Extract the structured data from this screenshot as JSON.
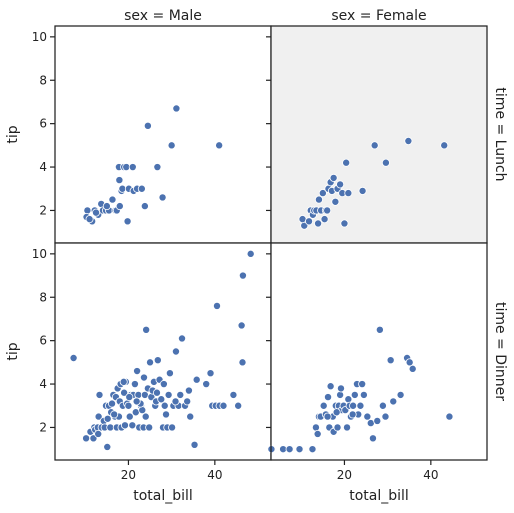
{
  "chart_data": {
    "type": "scatter",
    "xlabel": "total_bill",
    "ylabel": "tip",
    "xlim": [
      3,
      53
    ],
    "ylim": [
      0.5,
      10.5
    ],
    "xticks": [
      20,
      40
    ],
    "yticks": [
      2,
      4,
      6,
      8,
      10
    ],
    "marker_color": "#4c72b0",
    "highlight_bg": "#f0f0f0",
    "col_titles": [
      "sex = Male",
      "sex = Female"
    ],
    "row_titles": [
      "time = Lunch",
      "time = Dinner"
    ],
    "panels": [
      {
        "row": 0,
        "col": 0,
        "highlight": false,
        "points": [
          [
            10.5,
            2
          ],
          [
            10.3,
            1.7
          ],
          [
            11.6,
            1.5
          ],
          [
            12.2,
            2
          ],
          [
            13,
            1.8
          ],
          [
            13.7,
            2.3
          ],
          [
            14.1,
            2
          ],
          [
            14.8,
            2
          ],
          [
            15.5,
            2
          ],
          [
            16.3,
            2.5
          ],
          [
            17,
            2
          ],
          [
            17.3,
            2
          ],
          [
            17.8,
            4
          ],
          [
            17.9,
            3.4
          ],
          [
            18,
            2.2
          ],
          [
            18.4,
            2.9
          ],
          [
            18.6,
            3
          ],
          [
            19,
            4
          ],
          [
            19.5,
            4
          ],
          [
            20.1,
            3
          ],
          [
            21,
            4
          ],
          [
            21.2,
            2.9
          ],
          [
            22,
            3
          ],
          [
            23.1,
            3
          ],
          [
            23.8,
            2.2
          ],
          [
            24.5,
            5.9
          ],
          [
            26.7,
            4
          ],
          [
            27.9,
            2.6
          ],
          [
            30,
            5
          ],
          [
            31.1,
            6.7
          ],
          [
            41,
            5
          ],
          [
            19.8,
            1.5
          ],
          [
            15,
            2.2
          ],
          [
            12.5,
            1.9
          ],
          [
            11,
            1.6
          ]
        ]
      },
      {
        "row": 0,
        "col": 1,
        "highlight": true,
        "points": [
          [
            10.7,
            1.3
          ],
          [
            10.3,
            1.6
          ],
          [
            11.8,
            1.5
          ],
          [
            12.2,
            2
          ],
          [
            12.7,
            1.8
          ],
          [
            13,
            2
          ],
          [
            13.5,
            2
          ],
          [
            14.1,
            2.5
          ],
          [
            14.6,
            2
          ],
          [
            15,
            2.8
          ],
          [
            15.4,
            1.6
          ],
          [
            15.7,
            2
          ],
          [
            16.3,
            3
          ],
          [
            16.8,
            3.3
          ],
          [
            17.1,
            2.9
          ],
          [
            17.5,
            3.5
          ],
          [
            17.9,
            2.4
          ],
          [
            18.4,
            3
          ],
          [
            19,
            3.2
          ],
          [
            19.5,
            2.8
          ],
          [
            20,
            1.4
          ],
          [
            20.4,
            4.2
          ],
          [
            20.9,
            2.8
          ],
          [
            24.2,
            2.9
          ],
          [
            27,
            5
          ],
          [
            29.6,
            4.2
          ],
          [
            34.8,
            5.2
          ],
          [
            43.1,
            5
          ],
          [
            13.9,
            1.4
          ],
          [
            16,
            2
          ]
        ]
      },
      {
        "row": 1,
        "col": 0,
        "highlight": false,
        "points": [
          [
            7.3,
            5.2
          ],
          [
            10.2,
            1.5
          ],
          [
            11.2,
            1.8
          ],
          [
            11.9,
            1.5
          ],
          [
            12.1,
            2
          ],
          [
            12.3,
            1.9
          ],
          [
            12.9,
            2
          ],
          [
            13,
            1.7
          ],
          [
            13.1,
            2.5
          ],
          [
            13.3,
            3.5
          ],
          [
            13.8,
            2
          ],
          [
            14.3,
            2.3
          ],
          [
            14.5,
            2
          ],
          [
            14.8,
            3
          ],
          [
            15.1,
            1.1
          ],
          [
            15.2,
            2.4
          ],
          [
            15.5,
            3
          ],
          [
            15.8,
            2
          ],
          [
            16,
            2.7
          ],
          [
            16.2,
            3.1
          ],
          [
            16.5,
            3.5
          ],
          [
            16.9,
            2.5
          ],
          [
            17.1,
            3.4
          ],
          [
            17.3,
            2
          ],
          [
            17.5,
            3.8
          ],
          [
            17.8,
            2.5
          ],
          [
            18,
            3.2
          ],
          [
            18.2,
            4
          ],
          [
            18.4,
            2
          ],
          [
            18.7,
            3
          ],
          [
            19,
            3.6
          ],
          [
            19.2,
            2.1
          ],
          [
            19.4,
            4.1
          ],
          [
            19.7,
            3.1
          ],
          [
            20,
            3
          ],
          [
            20.3,
            2.5
          ],
          [
            20.6,
            3.5
          ],
          [
            20.9,
            2.1
          ],
          [
            21.1,
            3.5
          ],
          [
            21.5,
            4
          ],
          [
            21.7,
            2.7
          ],
          [
            22,
            4.6
          ],
          [
            22.3,
            3.5
          ],
          [
            22.5,
            2
          ],
          [
            22.9,
            3
          ],
          [
            23.2,
            2.8
          ],
          [
            23.5,
            2
          ],
          [
            23.8,
            3.5
          ],
          [
            24,
            2.5
          ],
          [
            24.1,
            6.5
          ],
          [
            24.5,
            3.8
          ],
          [
            24.8,
            2
          ],
          [
            25,
            5
          ],
          [
            25.3,
            3.4
          ],
          [
            25.6,
            3.7
          ],
          [
            25.9,
            4.1
          ],
          [
            26.2,
            3
          ],
          [
            26.4,
            3.2
          ],
          [
            26.8,
            5.1
          ],
          [
            27.2,
            4.2
          ],
          [
            27.6,
            3.3
          ],
          [
            28,
            2
          ],
          [
            28.2,
            4
          ],
          [
            28.4,
            3
          ],
          [
            28.7,
            2.6
          ],
          [
            29,
            2
          ],
          [
            29.3,
            3.5
          ],
          [
            29.6,
            4.5
          ],
          [
            30.1,
            2
          ],
          [
            30.4,
            3
          ],
          [
            31,
            5.5
          ],
          [
            31.6,
            3
          ],
          [
            32,
            3.5
          ],
          [
            32.4,
            6.1
          ],
          [
            33.1,
            3
          ],
          [
            33.6,
            3.2
          ],
          [
            34,
            3.7
          ],
          [
            34.3,
            2.5
          ],
          [
            35.3,
            1.2
          ],
          [
            38,
            4
          ],
          [
            39.4,
            3
          ],
          [
            40.2,
            3
          ],
          [
            40.5,
            7.6
          ],
          [
            41.1,
            3
          ],
          [
            42,
            3
          ],
          [
            44.3,
            3.5
          ],
          [
            45.4,
            3
          ],
          [
            46.2,
            6.7
          ],
          [
            46.4,
            5
          ],
          [
            46.5,
            9
          ],
          [
            48.3,
            10
          ],
          [
            39,
            4.5
          ],
          [
            30.9,
            3.2
          ],
          [
            35.8,
            4.2
          ],
          [
            22.8,
            3.1
          ],
          [
            18.9,
            4.1
          ],
          [
            16.7,
            2.6
          ],
          [
            21.9,
            3.2
          ],
          [
            26.6,
            3.6
          ],
          [
            20.2,
            3.4
          ],
          [
            23.6,
            4.3
          ]
        ]
      },
      {
        "row": 1,
        "col": 1,
        "highlight": false,
        "points": [
          [
            3.1,
            1
          ],
          [
            5.8,
            1
          ],
          [
            7.3,
            1
          ],
          [
            9.6,
            1
          ],
          [
            12.6,
            1
          ],
          [
            13.4,
            2
          ],
          [
            13.8,
            1.7
          ],
          [
            14.1,
            2.5
          ],
          [
            14.5,
            2.5
          ],
          [
            15.2,
            3
          ],
          [
            15.7,
            2.6
          ],
          [
            16.2,
            3.4
          ],
          [
            16.5,
            2
          ],
          [
            16.8,
            3.9
          ],
          [
            17.3,
            2.5
          ],
          [
            17.5,
            1.8
          ],
          [
            18,
            3
          ],
          [
            18.4,
            2
          ],
          [
            18.7,
            3
          ],
          [
            19,
            3.5
          ],
          [
            19.4,
            2.8
          ],
          [
            19.8,
            3
          ],
          [
            20.2,
            2.8
          ],
          [
            20.6,
            2
          ],
          [
            20.9,
            3.3
          ],
          [
            21.2,
            3
          ],
          [
            21.5,
            2.5
          ],
          [
            22,
            3
          ],
          [
            22.4,
            3.5
          ],
          [
            22.9,
            4
          ],
          [
            23.2,
            2.6
          ],
          [
            23.7,
            3
          ],
          [
            24.5,
            3.5
          ],
          [
            25.3,
            2.5
          ],
          [
            26.1,
            2.2
          ],
          [
            26.6,
            1.5
          ],
          [
            27.6,
            2.3
          ],
          [
            28.2,
            6.5
          ],
          [
            28.9,
            3
          ],
          [
            29.5,
            2.5
          ],
          [
            30.7,
            5.1
          ],
          [
            31.3,
            3.2
          ],
          [
            34.5,
            5.2
          ],
          [
            35.1,
            5
          ],
          [
            35.8,
            4.7
          ],
          [
            44.3,
            2.5
          ],
          [
            19.2,
            3.8
          ],
          [
            24.1,
            4
          ],
          [
            21.9,
            2.6
          ],
          [
            16.1,
            2.5
          ],
          [
            33,
            3.5
          ],
          [
            18.2,
            2.7
          ]
        ]
      }
    ]
  }
}
